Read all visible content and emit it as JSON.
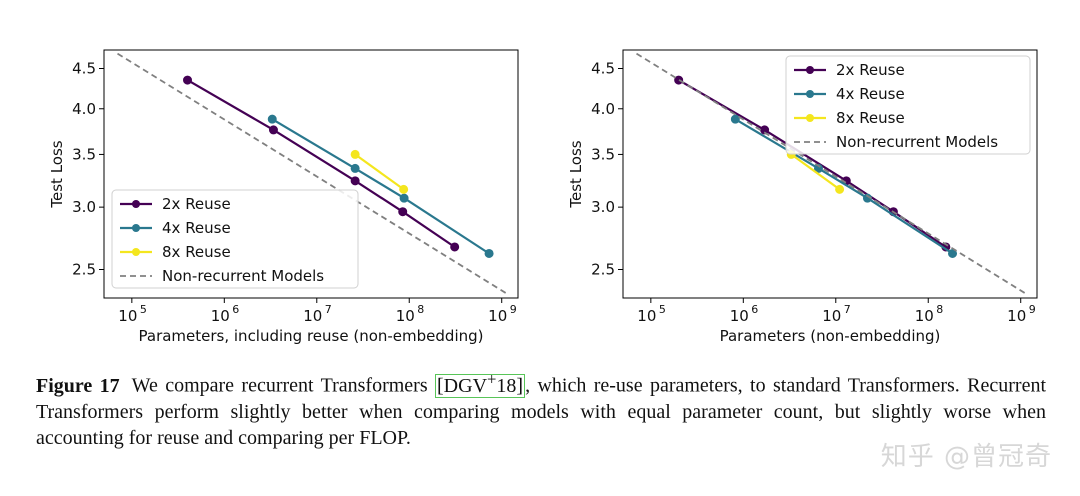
{
  "chart_data": [
    {
      "type": "line",
      "xscale": "log",
      "yscale": "log",
      "xlabel": "Parameters, including reuse (non-embedding)",
      "ylabel": "Test Loss",
      "xlim": [
        50000,
        1500000000
      ],
      "ylim": [
        2.3,
        4.75
      ],
      "x_ticks": [
        100000,
        1000000,
        10000000,
        100000000,
        1000000000
      ],
      "x_tick_labels": [
        [
          "10",
          "5"
        ],
        [
          "10",
          "6"
        ],
        [
          "10",
          "7"
        ],
        [
          "10",
          "8"
        ],
        [
          "10",
          "9"
        ]
      ],
      "y_ticks": [
        2.5,
        3.0,
        3.5,
        4.0,
        4.5
      ],
      "y_tick_labels": [
        "2.5",
        "3.0",
        "3.5",
        "4.0",
        "4.5"
      ],
      "legend_position": "lower-left",
      "series": [
        {
          "name": "2x Reuse",
          "color": "#440154",
          "x": [
            400000,
            3400000,
            26000000,
            85000000,
            310000000
          ],
          "y": [
            4.35,
            3.76,
            3.24,
            2.96,
            2.67
          ]
        },
        {
          "name": "4x Reuse",
          "color": "#2a788e",
          "x": [
            3300000,
            26000000,
            88000000,
            730000000
          ],
          "y": [
            3.88,
            3.36,
            3.08,
            2.62
          ]
        },
        {
          "name": "8x Reuse",
          "color": "#f4e61e",
          "x": [
            26000000,
            87000000
          ],
          "y": [
            3.5,
            3.16
          ]
        },
        {
          "name": "Non-recurrent Models",
          "color": "#808080",
          "dashed": true,
          "x": [
            70000,
            1200000000
          ],
          "y": [
            4.7,
            2.32
          ]
        }
      ]
    },
    {
      "type": "line",
      "xscale": "log",
      "yscale": "log",
      "xlabel": "Parameters (non-embedding)",
      "ylabel": "Test Loss",
      "xlim": [
        50000,
        1500000000
      ],
      "ylim": [
        2.3,
        4.75
      ],
      "x_ticks": [
        100000,
        1000000,
        10000000,
        100000000,
        1000000000
      ],
      "x_tick_labels": [
        [
          "10",
          "5"
        ],
        [
          "10",
          "6"
        ],
        [
          "10",
          "7"
        ],
        [
          "10",
          "8"
        ],
        [
          "10",
          "9"
        ]
      ],
      "y_ticks": [
        2.5,
        3.0,
        3.5,
        4.0,
        4.5
      ],
      "y_tick_labels": [
        "2.5",
        "3.0",
        "3.5",
        "4.0",
        "4.5"
      ],
      "legend_position": "upper-right",
      "series": [
        {
          "name": "2x Reuse",
          "color": "#440154",
          "x": [
            200000,
            1700000,
            13000000,
            42000000,
            155000000
          ],
          "y": [
            4.35,
            3.76,
            3.24,
            2.96,
            2.67
          ]
        },
        {
          "name": "4x Reuse",
          "color": "#2a788e",
          "x": [
            820000,
            6500000,
            22000000,
            183000000
          ],
          "y": [
            3.88,
            3.36,
            3.08,
            2.62
          ]
        },
        {
          "name": "8x Reuse",
          "color": "#f4e61e",
          "x": [
            3300000,
            11000000
          ],
          "y": [
            3.5,
            3.16
          ]
        },
        {
          "name": "Non-recurrent Models",
          "color": "#808080",
          "dashed": true,
          "x": [
            70000,
            1200000000
          ],
          "y": [
            4.7,
            2.32
          ]
        }
      ]
    }
  ],
  "caption": {
    "label": "Figure 17",
    "text_before": "We compare recurrent Transformers ",
    "citation": "[DGV",
    "citation_sup": "+",
    "citation_end": "18]",
    "text_after": ", which re-use parameters, to standard Transformers. Recurrent Transformers perform slightly better when comparing models with equal parameter count, but slightly worse when accounting for reuse and comparing per FLOP."
  },
  "watermark": "知乎 @曾冠奇"
}
